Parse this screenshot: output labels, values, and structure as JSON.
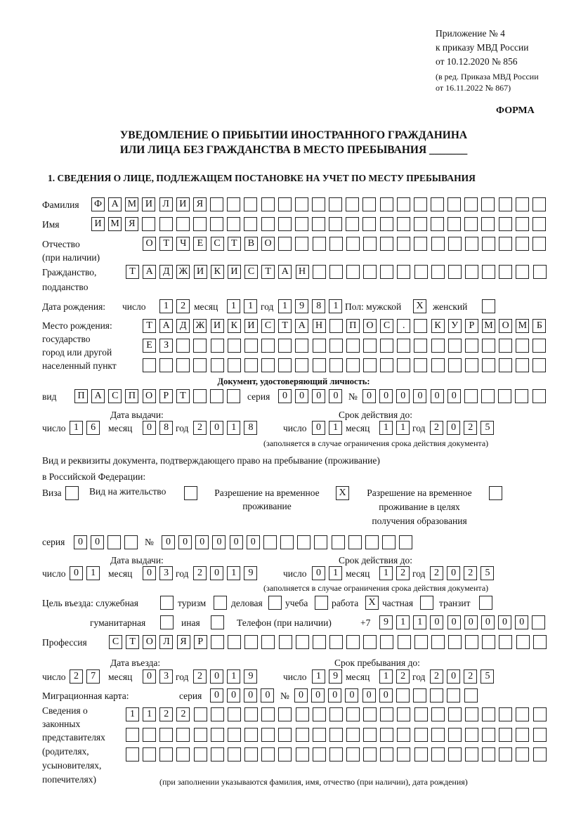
{
  "header": {
    "appendix": "Приложение № 4",
    "order": "к приказу МВД России",
    "order_date": "от 10.12.2020 № 856",
    "edition_1": "(в ред. Приказа МВД России",
    "edition_2": "от 16.11.2022 № 867)",
    "form": "ФОРМА",
    "title_1": "УВЕДОМЛЕНИЕ О ПРИБЫТИИ ИНОСТРАННОГО ГРАЖДАНИНА",
    "title_2": "ИЛИ ЛИЦА БЕЗ ГРАЖДАНСТВА В МЕСТО ПРЕБЫВАНИЯ _______",
    "section_1": "1. СВЕДЕНИЯ О ЛИЦЕ, ПОДЛЕЖАЩЕМ ПОСТАНОВКЕ НА УЧЕТ ПО МЕСТУ ПРЕБЫВАНИЯ"
  },
  "labels": {
    "surname": "Фамилия",
    "name": "Имя",
    "patronymic_1": "Отчество",
    "patronymic_2": "(при наличии)",
    "citizenship_1": "Гражданство,",
    "citizenship_2": "подданство",
    "birth_date": "Дата рождения:",
    "day": "число",
    "month": "месяц",
    "year": "год",
    "sex": "Пол: мужской",
    "female": "женский",
    "birthplace_1": "Место рождения:",
    "birthplace_2": "государство",
    "birthplace_3": "город или другой",
    "birthplace_4": "населенный пункт",
    "id_doc": "Документ, удостоверяющий личность:",
    "kind": "вид",
    "series": "серия",
    "number": "№",
    "issue_date": "Дата выдачи:",
    "valid_until": "Срок действия до:",
    "validity_note": "(заполняется в случае ограничения срока действия документа)",
    "stay_doc_1": "Вид и реквизиты документа, подтверждающего право на пребывание (проживание)",
    "stay_doc_2": "в Российской Федерации:",
    "visa": "Виза",
    "residence": "Вид на жительство",
    "trp_1": "Разрешение на временное",
    "trp_2": "проживание",
    "trp_edu_1": "Разрешение на временное",
    "trp_edu_2": "проживание в целях",
    "trp_edu_3": "получения образования",
    "purpose": "Цель въезда: служебная",
    "tourism": "туризм",
    "business": "деловая",
    "study": "учеба",
    "work": "работа",
    "private": "частная",
    "transit": "транзит",
    "humanitarian": "гуманитарная",
    "other": "иная",
    "phone": "Телефон (при наличии)",
    "phone_prefix": "+7",
    "profession": "Профессия",
    "entry_date": "Дата въезда:",
    "stay_until": "Срок пребывания до:",
    "migration_card": "Миграционная карта:",
    "reps_1": "Сведения о",
    "reps_2": "законных",
    "reps_3": "представителях",
    "reps_4": "(родителях,",
    "reps_5": "усыновителях,",
    "reps_6": "попечителях)",
    "reps_note": "(при заполнении указываются фамилия, имя, отчество (при наличии), дата рождения)"
  },
  "values": {
    "surname": "ФАМИЛИЯ",
    "name": "ИМЯ",
    "patronymic": "ОТЧЕСТВО",
    "citizenship": "ТАДЖИКИСТАН",
    "birth_day": "12",
    "birth_month": "11",
    "birth_year": "1981",
    "sex_male": "X",
    "sex_female": "",
    "birthplace_1": "ТАДЖИКИСТАН ПОС. КУРМОМБ",
    "birthplace_2": "ЕЗ",
    "birthplace_3": "",
    "id_kind": "ПАСПОРТ",
    "id_series": "0000",
    "id_number": "000000",
    "id_issue_day": "16",
    "id_issue_month": "08",
    "id_issue_year": "2018",
    "id_valid_day": "01",
    "id_valid_month": "11",
    "id_valid_year": "2025",
    "visa": "",
    "residence": "",
    "trp": "X",
    "trp_edu": "",
    "stay_series": "00",
    "stay_number": "000000",
    "stay_issue_day": "01",
    "stay_issue_month": "03",
    "stay_issue_year": "2019",
    "stay_valid_day": "01",
    "stay_valid_month": "12",
    "stay_valid_year": "2025",
    "purpose_official": "",
    "purpose_tourism": "",
    "purpose_business": "",
    "purpose_study": "",
    "purpose_work": "X",
    "purpose_private": "",
    "purpose_transit": "",
    "purpose_humanitarian": "",
    "purpose_other": "",
    "phone": "911000000",
    "profession": "СТОЛЯР",
    "entry_day": "27",
    "entry_month": "03",
    "entry_year": "2019",
    "stay_until_day": "19",
    "stay_until_month": "12",
    "stay_until_year": "2025",
    "mig_series": "0000",
    "mig_number": "000000",
    "reps_1": "1122",
    "reps_2": "",
    "reps_3": ""
  }
}
